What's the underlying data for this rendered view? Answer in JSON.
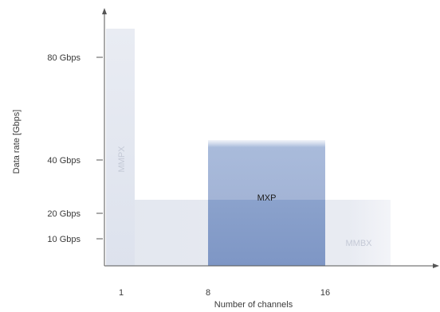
{
  "chart_data": {
    "type": "area",
    "xlabel": "Number of channels",
    "ylabel": "Data rate [Gbps]",
    "x_ticks": [
      {
        "value": 1,
        "label": "1"
      },
      {
        "value": 8,
        "label": "8"
      },
      {
        "value": 16,
        "label": "16"
      }
    ],
    "y_ticks": [
      {
        "value": 10,
        "label": "10 Gbps"
      },
      {
        "value": 20,
        "label": "20 Gbps"
      },
      {
        "value": 40,
        "label": "40 Gbps"
      },
      {
        "value": 80,
        "label": "80 Gbps"
      }
    ],
    "regions": [
      {
        "name": "MMBX",
        "x_range": [
          0,
          22
        ],
        "y_range": [
          0,
          22
        ],
        "color": "#e6e9f0",
        "label_color": "#c4c9d6"
      },
      {
        "name": "MMPX",
        "x_range": [
          0,
          2
        ],
        "y_range": [
          0,
          95
        ],
        "color": "#dfe3ee",
        "label_color": "#c4c9d6"
      },
      {
        "name": "MXP",
        "x_range": [
          8,
          16
        ],
        "y_range": [
          0,
          50
        ],
        "color": "#7f98c6",
        "label_color": "#1a1a1a"
      }
    ]
  }
}
